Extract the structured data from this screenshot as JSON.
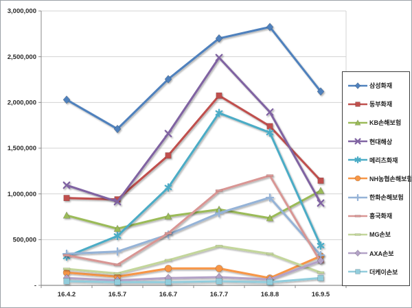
{
  "chart_data": {
    "type": "line",
    "title": "",
    "xlabel": "",
    "ylabel": "",
    "categories": [
      "16.4.2",
      "16.5.7",
      "16.6.7",
      "16.7.7",
      "16.8.8",
      "16.9.5"
    ],
    "ylim": [
      0,
      3000000
    ],
    "ytick_step": 500000,
    "ytick_labels_bottom_up": [
      "-",
      "500,000",
      "1,000,000",
      "1,500,000",
      "2,000,000",
      "2,500,000",
      "3,000,000"
    ],
    "grid": "horizontal",
    "gridline_color": "#d3d3d3",
    "axis_color": "#898989",
    "legend_position": "right",
    "legend_border_color": "#3a3a3a",
    "series": [
      {
        "name": "삼성화재",
        "color": "#4f81bd",
        "marker": "diamond",
        "values": [
          2030000,
          1710000,
          2255000,
          2700000,
          2825000,
          2120000
        ]
      },
      {
        "name": "동부화재",
        "color": "#c0504d",
        "marker": "square",
        "values": [
          955000,
          940000,
          1420000,
          2075000,
          1740000,
          1145000
        ]
      },
      {
        "name": "KB손해보험",
        "color": "#9bbb59",
        "marker": "triangle",
        "values": [
          765000,
          620000,
          755000,
          830000,
          735000,
          1035000
        ]
      },
      {
        "name": "현대해상",
        "color": "#8064a2",
        "marker": "x",
        "values": [
          1095000,
          915000,
          1660000,
          2490000,
          1895000,
          900000
        ]
      },
      {
        "name": "메리츠화재",
        "color": "#4bacc6",
        "marker": "asterisk",
        "values": [
          315000,
          540000,
          1070000,
          1885000,
          1670000,
          435000
        ]
      },
      {
        "name": "NH농협손해보험",
        "color": "#f79646",
        "marker": "circle",
        "values": [
          140000,
          95000,
          185000,
          185000,
          80000,
          320000
        ]
      },
      {
        "name": "한화손해보험",
        "color": "#95b3d7",
        "marker": "plus",
        "values": [
          345000,
          370000,
          555000,
          790000,
          960000,
          330000
        ]
      },
      {
        "name": "흥국화재",
        "color": "#d99694",
        "marker": "dash",
        "values": [
          330000,
          225000,
          570000,
          1035000,
          1200000,
          255000
        ]
      },
      {
        "name": "MG손보",
        "color": "#c3d69b",
        "marker": "dash",
        "values": [
          180000,
          130000,
          275000,
          430000,
          345000,
          140000
        ]
      },
      {
        "name": "AXA손보",
        "color": "#b3a2c7",
        "marker": "diamond",
        "values": [
          80000,
          55000,
          80000,
          90000,
          65000,
          270000
        ]
      },
      {
        "name": "더케이손보",
        "color": "#92cddc",
        "marker": "square",
        "values": [
          45000,
          35000,
          35000,
          45000,
          35000,
          80000
        ]
      }
    ]
  }
}
